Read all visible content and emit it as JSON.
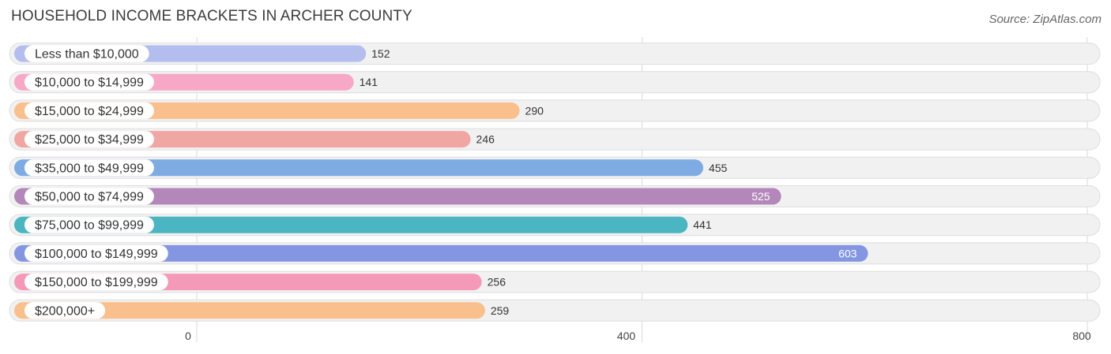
{
  "header": {
    "title": "HOUSEHOLD INCOME BRACKETS IN ARCHER COUNTY",
    "source": "Source: ZipAtlas.com"
  },
  "chart_data": {
    "type": "bar",
    "orientation": "horizontal",
    "title": "HOUSEHOLD INCOME BRACKETS IN ARCHER COUNTY",
    "xlabel": "",
    "ylabel": "",
    "xlim": [
      0,
      800
    ],
    "ticks": [
      0,
      400,
      800
    ],
    "tick_labels": [
      "0",
      "400",
      "800"
    ],
    "grid": true,
    "categories": [
      "Less than $10,000",
      "$10,000 to $14,999",
      "$15,000 to $24,999",
      "$25,000 to $34,999",
      "$35,000 to $49,999",
      "$50,000 to $74,999",
      "$75,000 to $99,999",
      "$100,000 to $149,999",
      "$150,000 to $199,999",
      "$200,000+"
    ],
    "values": [
      152,
      141,
      290,
      246,
      455,
      525,
      441,
      603,
      256,
      259
    ],
    "value_labels": [
      "152",
      "141",
      "290",
      "246",
      "455",
      "525",
      "441",
      "603",
      "256",
      "259"
    ],
    "colors": [
      "#b3bdee",
      "#f7a8c6",
      "#f9c08e",
      "#f0a7a3",
      "#7eabe2",
      "#b387ba",
      "#4bb5c1",
      "#8496e2",
      "#f599b8",
      "#f9c08e"
    ]
  }
}
